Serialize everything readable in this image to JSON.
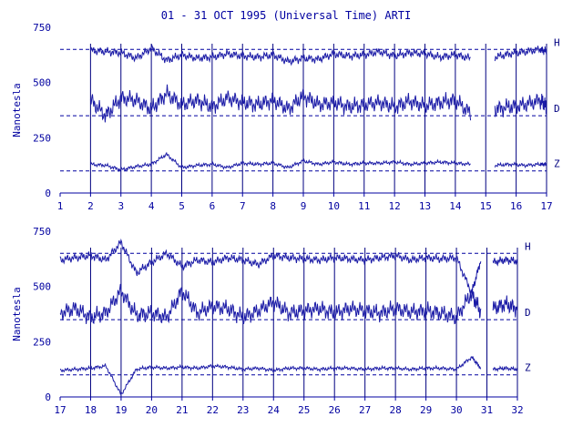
{
  "colors": {
    "trace": "#1a1aa6",
    "axis": "#0000a0",
    "frame": "#000080"
  },
  "chart_data": [
    {
      "type": "line",
      "title": "01 - 31 OCT 1995 (Universal Time) ARTI",
      "ylabel": "Nanotesla",
      "xlim": [
        1,
        17
      ],
      "ylim": [
        0,
        750
      ],
      "x_ticks": [
        1,
        2,
        3,
        4,
        5,
        6,
        7,
        8,
        9,
        10,
        11,
        12,
        13,
        14,
        15,
        16,
        17
      ],
      "y_ticks": [
        0,
        250,
        500,
        750
      ],
      "reference_levels": [
        650,
        350,
        100
      ],
      "grid": "vertical lines at each day from 2 to 17",
      "data_gaps": [
        [
          14.5,
          15.3
        ]
      ],
      "series": [
        {
          "name": "H",
          "x": [
            2,
            2.5,
            3,
            3.5,
            4,
            4.5,
            5,
            5.5,
            6,
            6.5,
            7,
            7.5,
            8,
            8.5,
            9,
            9.5,
            10,
            10.5,
            11,
            11.5,
            12,
            12.5,
            13,
            13.5,
            14,
            14.5,
            15.3,
            15.8,
            16.3,
            16.8,
            17
          ],
          "values": [
            645,
            640,
            635,
            610,
            655,
            600,
            625,
            610,
            615,
            630,
            620,
            615,
            625,
            595,
            610,
            605,
            630,
            620,
            625,
            640,
            620,
            635,
            630,
            615,
            625,
            610,
            615,
            630,
            640,
            650,
            640
          ]
        },
        {
          "name": "D",
          "x": [
            2,
            2.5,
            3,
            3.5,
            4,
            4.5,
            5,
            5.5,
            6,
            6.5,
            7,
            7.5,
            8,
            8.5,
            9,
            9.5,
            10,
            10.5,
            11,
            11.5,
            12,
            12.5,
            13,
            13.5,
            14,
            14.5,
            15.3,
            15.8,
            16.3,
            16.8,
            17
          ],
          "values": [
            420,
            350,
            430,
            420,
            380,
            450,
            400,
            420,
            390,
            430,
            410,
            400,
            420,
            380,
            440,
            400,
            410,
            390,
            400,
            410,
            390,
            415,
            395,
            410,
            420,
            360,
            380,
            390,
            400,
            420,
            390
          ]
        },
        {
          "name": "Z",
          "x": [
            2,
            2.5,
            3,
            3.5,
            4,
            4.5,
            5,
            5.5,
            6,
            6.5,
            7,
            7.5,
            8,
            8.5,
            9,
            9.5,
            10,
            10.5,
            11,
            11.5,
            12,
            12.5,
            13,
            13.5,
            14,
            14.5,
            15.3,
            15.8,
            16.3,
            16.8,
            17
          ],
          "values": [
            130,
            125,
            105,
            120,
            130,
            175,
            115,
            125,
            130,
            115,
            135,
            130,
            135,
            115,
            145,
            130,
            140,
            130,
            135,
            135,
            140,
            130,
            135,
            140,
            135,
            130,
            125,
            130,
            125,
            130,
            130
          ]
        }
      ]
    },
    {
      "type": "line",
      "title": "",
      "ylabel": "Nanotesla",
      "xlim": [
        17,
        32
      ],
      "ylim": [
        0,
        750
      ],
      "x_ticks": [
        17,
        18,
        19,
        20,
        21,
        22,
        23,
        24,
        25,
        26,
        27,
        28,
        29,
        30,
        31,
        32
      ],
      "y_ticks": [
        0,
        250,
        500,
        750
      ],
      "reference_levels": [
        650,
        350,
        100
      ],
      "grid": "vertical lines at each day from 18 to 32",
      "data_gaps": [
        [
          30.8,
          31.2
        ]
      ],
      "series": [
        {
          "name": "H",
          "x": [
            17,
            17.5,
            18,
            18.5,
            19,
            19.5,
            20,
            20.5,
            21,
            21.5,
            22,
            22.5,
            23,
            23.5,
            24,
            24.5,
            25,
            25.5,
            26,
            26.5,
            27,
            27.5,
            28,
            28.5,
            29,
            29.5,
            30,
            30.5,
            30.8,
            31.2,
            31.6,
            32
          ],
          "values": [
            620,
            630,
            640,
            620,
            700,
            560,
            610,
            650,
            590,
            620,
            610,
            630,
            620,
            600,
            640,
            630,
            625,
            620,
            630,
            625,
            620,
            630,
            640,
            620,
            630,
            625,
            630,
            470,
            620,
            610,
            620,
            615
          ]
        },
        {
          "name": "D",
          "x": [
            17,
            17.5,
            18,
            18.5,
            19,
            19.5,
            20,
            20.5,
            21,
            21.5,
            22,
            22.5,
            23,
            23.5,
            24,
            24.5,
            25,
            25.5,
            26,
            26.5,
            27,
            27.5,
            28,
            28.5,
            29,
            29.5,
            30,
            30.5,
            30.8,
            31.2,
            31.6,
            32
          ],
          "values": [
            380,
            400,
            360,
            380,
            480,
            370,
            380,
            360,
            480,
            380,
            410,
            400,
            360,
            390,
            430,
            380,
            390,
            400,
            380,
            400,
            390,
            380,
            400,
            385,
            390,
            380,
            360,
            470,
            380,
            400,
            420,
            400
          ]
        },
        {
          "name": "Z",
          "x": [
            17,
            17.5,
            18,
            18.5,
            19,
            19.5,
            20,
            20.5,
            21,
            21.5,
            22,
            22.5,
            23,
            23.5,
            24,
            24.5,
            25,
            25.5,
            26,
            26.5,
            27,
            27.5,
            28,
            28.5,
            29,
            29.5,
            30,
            30.5,
            30.8,
            31.2,
            31.6,
            32
          ],
          "values": [
            120,
            125,
            130,
            140,
            10,
            125,
            135,
            130,
            135,
            130,
            140,
            135,
            125,
            130,
            120,
            130,
            130,
            125,
            130,
            130,
            125,
            130,
            130,
            125,
            130,
            130,
            125,
            180,
            130,
            125,
            130,
            125
          ]
        }
      ]
    }
  ]
}
